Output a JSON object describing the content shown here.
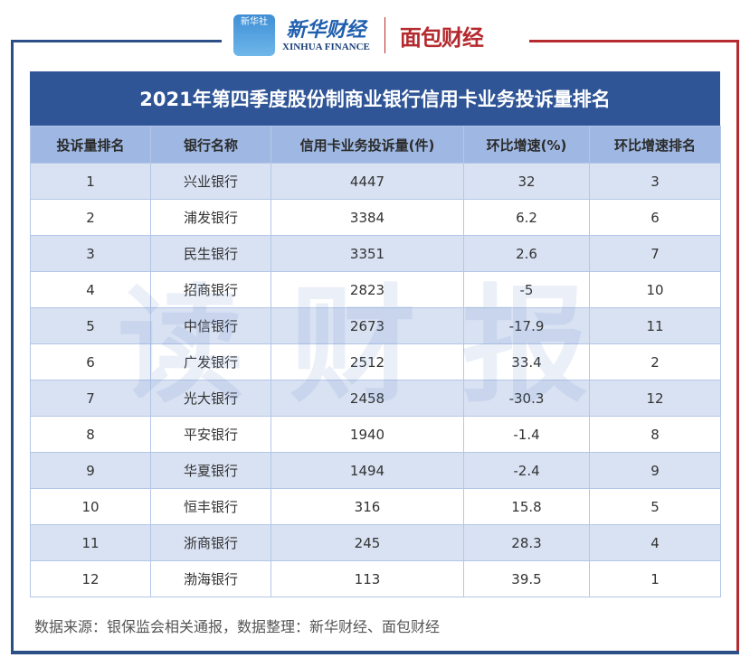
{
  "logos": {
    "xinhua_icon_text": "新华社",
    "xinhua_cn": "新华财经",
    "xinhua_en": "XINHUA FINANCE",
    "mianbao": "面包财经"
  },
  "colors": {
    "title_bg": "#2f5597",
    "header_bg": "#9fb8e3",
    "row_alt": "#d9e2f3",
    "frame_blue": "#2b4f86",
    "frame_red": "#b52a2e"
  },
  "watermark": "读财报",
  "chart_data": {
    "type": "table",
    "title": "2021年第四季度股份制商业银行信用卡业务投诉量排名",
    "columns": [
      "投诉量排名",
      "银行名称",
      "信用卡业务投诉量(件)",
      "环比增速(%)",
      "环比增速排名"
    ],
    "rows": [
      [
        "1",
        "兴业银行",
        "4447",
        "32",
        "3"
      ],
      [
        "2",
        "浦发银行",
        "3384",
        "6.2",
        "6"
      ],
      [
        "3",
        "民生银行",
        "3351",
        "2.6",
        "7"
      ],
      [
        "4",
        "招商银行",
        "2823",
        "-5",
        "10"
      ],
      [
        "5",
        "中信银行",
        "2673",
        "-17.9",
        "11"
      ],
      [
        "6",
        "广发银行",
        "2512",
        "33.4",
        "2"
      ],
      [
        "7",
        "光大银行",
        "2458",
        "-30.3",
        "12"
      ],
      [
        "8",
        "平安银行",
        "1940",
        "-1.4",
        "8"
      ],
      [
        "9",
        "华夏银行",
        "1494",
        "-2.4",
        "9"
      ],
      [
        "10",
        "恒丰银行",
        "316",
        "15.8",
        "5"
      ],
      [
        "11",
        "浙商银行",
        "245",
        "28.3",
        "4"
      ],
      [
        "12",
        "渤海银行",
        "113",
        "39.5",
        "1"
      ]
    ]
  },
  "footer": "数据来源：银保监会相关通报，数据整理：新华财经、面包财经"
}
